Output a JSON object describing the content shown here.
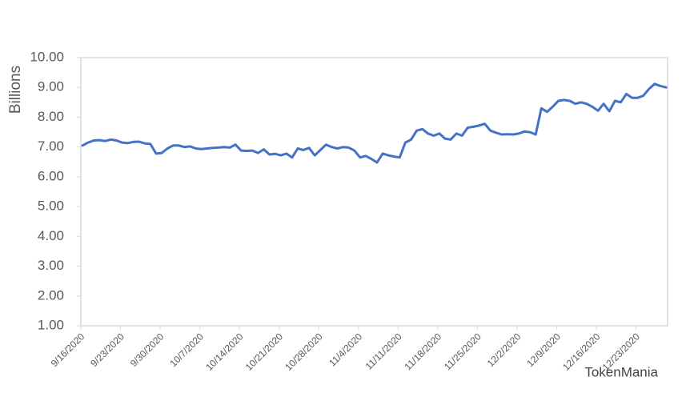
{
  "chart_data": {
    "type": "line",
    "y_label": "Billions",
    "watermark": "TokenMania",
    "categories": [
      "9/16/2020",
      null,
      null,
      null,
      null,
      null,
      null,
      "9/23/2020",
      null,
      null,
      null,
      null,
      null,
      null,
      "9/30/2020",
      null,
      null,
      null,
      null,
      null,
      null,
      "10/7/2020",
      null,
      null,
      null,
      null,
      null,
      null,
      "10/14/2020",
      null,
      null,
      null,
      null,
      null,
      null,
      "10/21/2020",
      null,
      null,
      null,
      null,
      null,
      null,
      "10/28/2020",
      null,
      null,
      null,
      null,
      null,
      null,
      "11/4/2020",
      null,
      null,
      null,
      null,
      null,
      null,
      "11/11/2020",
      null,
      null,
      null,
      null,
      null,
      null,
      "11/18/2020",
      null,
      null,
      null,
      null,
      null,
      null,
      "11/25/2020",
      null,
      null,
      null,
      null,
      null,
      null,
      "12/2/2020",
      null,
      null,
      null,
      null,
      null,
      null,
      "12/9/2020",
      null,
      null,
      null,
      null,
      null,
      null,
      "12/16/2020",
      null,
      null,
      null,
      null,
      null,
      null,
      "12/23/2020",
      null,
      null,
      null,
      null,
      null
    ],
    "series": [
      {
        "color": "#4472c4",
        "values": [
          7.05,
          7.15,
          7.22,
          7.23,
          7.2,
          7.25,
          7.22,
          7.15,
          7.13,
          7.17,
          7.18,
          7.12,
          7.1,
          6.78,
          6.8,
          6.95,
          7.05,
          7.05,
          7.0,
          7.02,
          6.95,
          6.93,
          6.95,
          6.97,
          6.98,
          7.0,
          6.98,
          7.08,
          6.88,
          6.87,
          6.88,
          6.8,
          6.92,
          6.75,
          6.77,
          6.72,
          6.78,
          6.65,
          6.95,
          6.9,
          6.97,
          6.72,
          6.9,
          7.08,
          7.0,
          6.95,
          7.0,
          6.98,
          6.88,
          6.65,
          6.7,
          6.6,
          6.48,
          6.78,
          6.72,
          6.68,
          6.65,
          7.15,
          7.25,
          7.55,
          7.6,
          7.45,
          7.38,
          7.45,
          7.28,
          7.25,
          7.45,
          7.38,
          7.65,
          7.68,
          7.72,
          7.78,
          7.55,
          7.48,
          7.42,
          7.43,
          7.42,
          7.45,
          7.52,
          7.5,
          7.42,
          8.3,
          8.18,
          8.35,
          8.55,
          8.58,
          8.55,
          8.45,
          8.5,
          8.45,
          8.35,
          8.22,
          8.45,
          8.2,
          8.55,
          8.5,
          8.78,
          8.65,
          8.65,
          8.72,
          8.95,
          9.12,
          9.05,
          9.0
        ]
      }
    ],
    "ylim": [
      1,
      10
    ],
    "yticks": [
      {
        "value": 1,
        "label": "1.00"
      },
      {
        "value": 2,
        "label": "2.00"
      },
      {
        "value": 3,
        "label": "3.00"
      },
      {
        "value": 4,
        "label": "4.00"
      },
      {
        "value": 5,
        "label": "5.00"
      },
      {
        "value": 6,
        "label": "6.00"
      },
      {
        "value": 7,
        "label": "7.00"
      },
      {
        "value": 8,
        "label": "8.00"
      },
      {
        "value": 9,
        "label": "9.00"
      },
      {
        "value": 10,
        "label": "10.00"
      }
    ]
  }
}
